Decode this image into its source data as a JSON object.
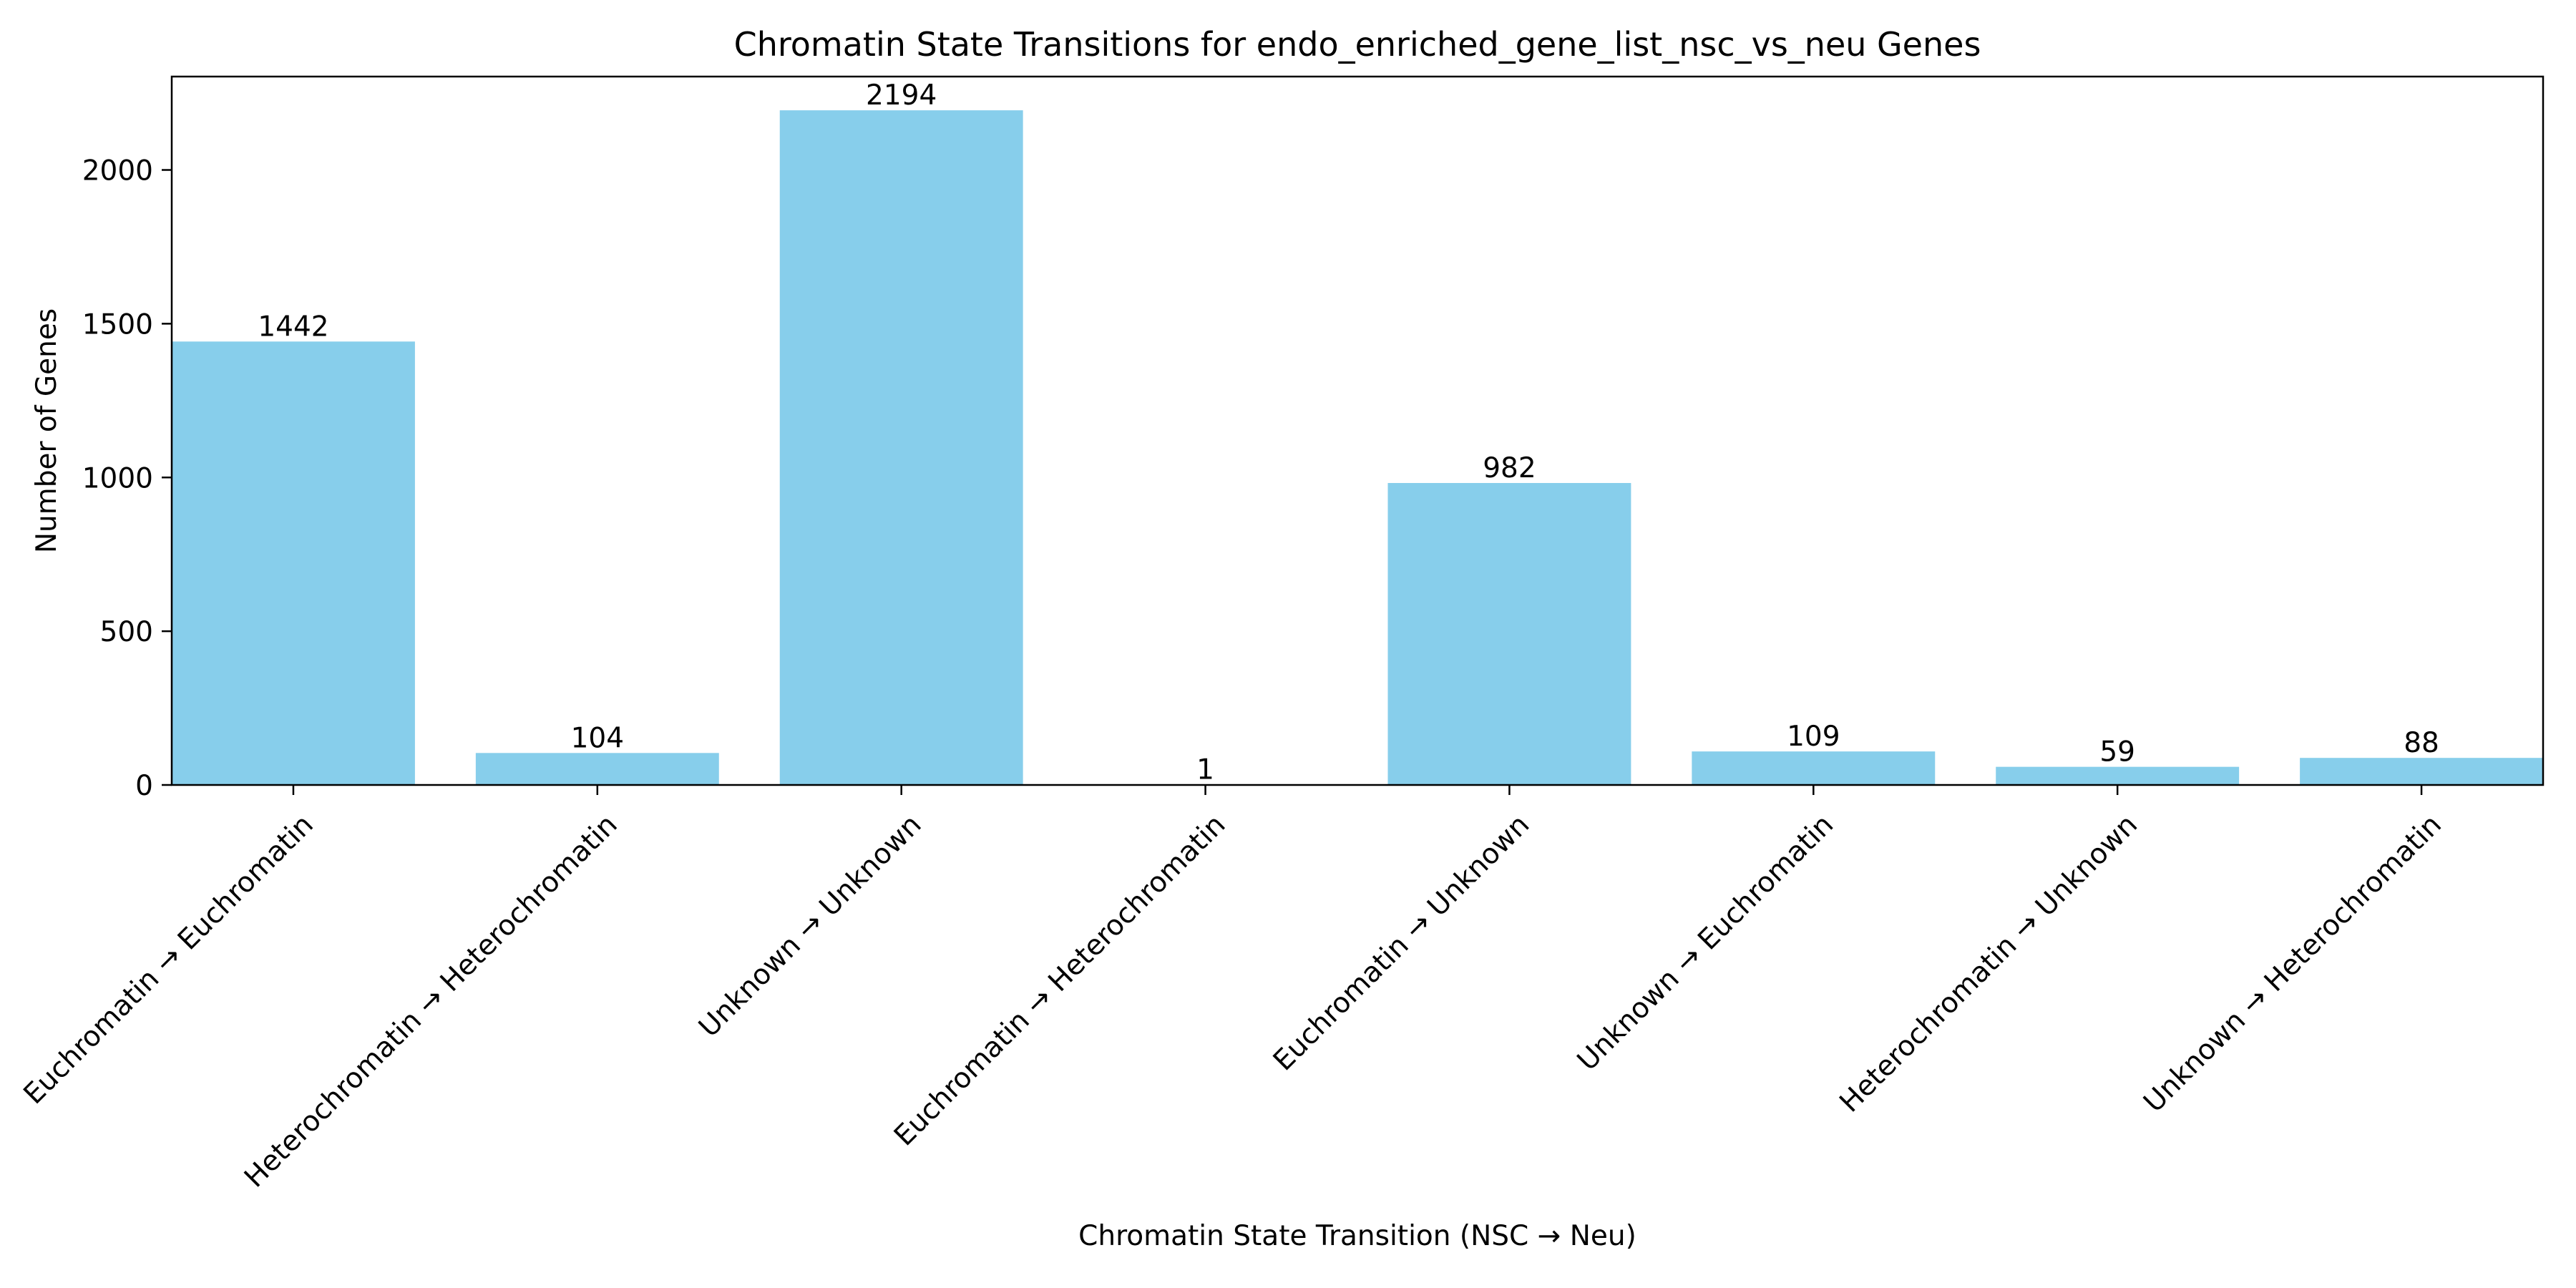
{
  "chart_data": {
    "type": "bar",
    "title": "Chromatin State Transitions for endo_enriched_gene_list_nsc_vs_neu Genes",
    "xlabel": "Chromatin State Transition (NSC → Neu)",
    "ylabel": "Number of Genes",
    "categories": [
      "Euchromatin → Euchromatin",
      "Heterochromatin → Heterochromatin",
      "Unknown → Unknown",
      "Euchromatin → Heterochromatin",
      "Euchromatin → Unknown",
      "Unknown → Euchromatin",
      "Heterochromatin → Unknown",
      "Unknown → Heterochromatin"
    ],
    "values": [
      1442,
      104,
      2194,
      1,
      982,
      109,
      59,
      88
    ],
    "data_labels": [
      "1442",
      "104",
      "2194",
      "1",
      "982",
      "109",
      "59",
      "88"
    ],
    "ylim": [
      0,
      2303.7
    ],
    "yticks": [
      0,
      500,
      1000,
      1500,
      2000
    ],
    "ytick_labels": [
      "0",
      "500",
      "1000",
      "1500",
      "2000"
    ],
    "grid": false,
    "legend": "none",
    "bar_color": "#87CEEB"
  }
}
